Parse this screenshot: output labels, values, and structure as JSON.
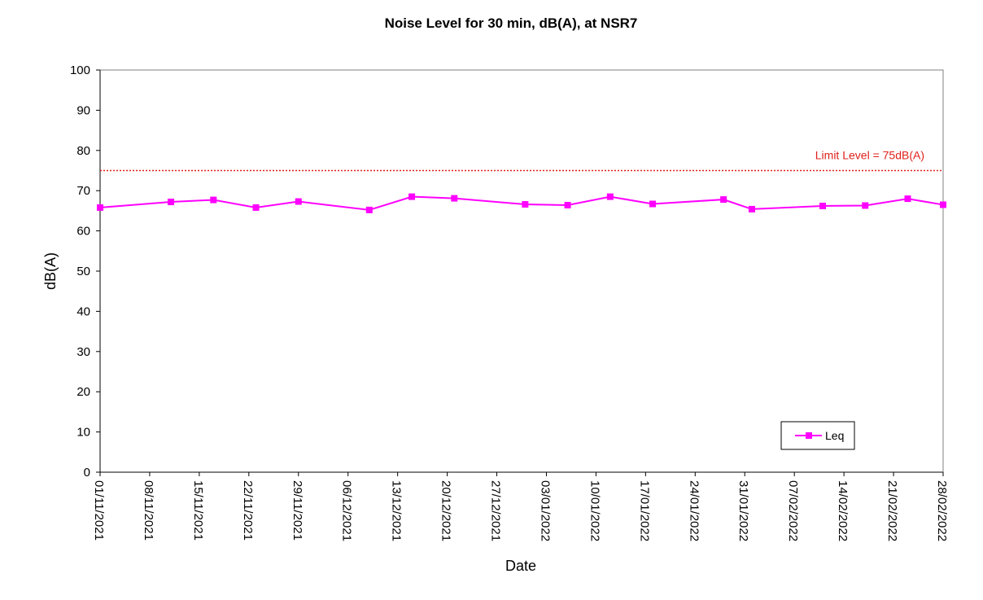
{
  "chart_data": {
    "type": "line",
    "title": "Noise Level for 30 min, dB(A), at NSR7",
    "xlabel": "Date",
    "ylabel": "dB(A)",
    "ylim": [
      0,
      100
    ],
    "yticks": [
      0,
      10,
      20,
      30,
      40,
      50,
      60,
      70,
      80,
      90,
      100
    ],
    "xlim": [
      "2021-11-01",
      "2022-02-28"
    ],
    "xtick_labels": [
      "01/11/2021",
      "08/11/2021",
      "15/11/2021",
      "22/11/2021",
      "29/11/2021",
      "06/12/2021",
      "13/12/2021",
      "20/12/2021",
      "27/12/2021",
      "03/01/2022",
      "10/01/2022",
      "17/01/2022",
      "24/01/2022",
      "31/01/2022",
      "07/02/2022",
      "14/02/2022",
      "21/02/2022",
      "28/02/2022"
    ],
    "grid": false,
    "legend_position": "bottom-right",
    "series": [
      {
        "name": "Leq",
        "color": "#ff00ff",
        "marker": "square",
        "x": [
          "2021-11-01",
          "2021-11-11",
          "2021-11-17",
          "2021-11-23",
          "2021-11-29",
          "2021-12-09",
          "2021-12-15",
          "2021-12-21",
          "2021-12-31",
          "2022-01-06",
          "2022-01-12",
          "2022-01-18",
          "2022-01-28",
          "2022-02-01",
          "2022-02-11",
          "2022-02-17",
          "2022-02-23",
          "2022-02-28"
        ],
        "y": [
          65.8,
          67.2,
          67.7,
          65.8,
          67.3,
          65.2,
          68.5,
          68.1,
          66.6,
          66.4,
          68.5,
          66.7,
          67.8,
          65.4,
          66.2,
          66.3,
          68.0,
          66.5
        ]
      }
    ],
    "reference_line": {
      "value": 75,
      "label": "Limit Level = 75dB(A)",
      "color": "#e0201b",
      "style": "dotted"
    }
  }
}
